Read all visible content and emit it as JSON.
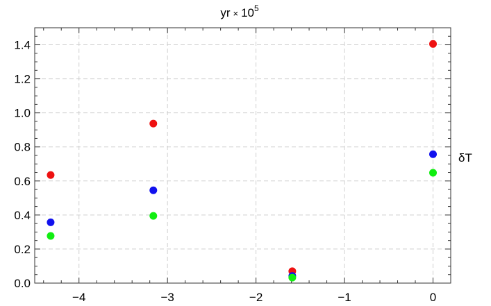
{
  "chart_data": {
    "type": "scatter",
    "title": "",
    "top_label": {
      "base": "yr",
      "times": "×",
      "mantissa": "10",
      "exponent": "5"
    },
    "xlabel": "",
    "ylabel": "δT",
    "xlim": [
      -4.5,
      0.2
    ],
    "ylim": [
      0,
      1.5
    ],
    "xticks": [
      -4,
      -3,
      -2,
      -1,
      0
    ],
    "xtick_labels": [
      "−4",
      "−3",
      "−2",
      "−1",
      "0"
    ],
    "yticks": [
      0.0,
      0.2,
      0.4,
      0.6,
      0.8,
      1.0,
      1.2,
      1.4
    ],
    "ytick_labels": [
      "0.0",
      "0.2",
      "0.4",
      "0.6",
      "0.8",
      "1.0",
      "1.2",
      "1.4"
    ],
    "grid": true,
    "x": [
      -4.32,
      -3.16,
      -1.59,
      0.0
    ],
    "series": [
      {
        "color": "#ee1111",
        "values": [
          0.635,
          0.937,
          0.07,
          1.405
        ]
      },
      {
        "color": "#1111ee",
        "values": [
          0.357,
          0.545,
          0.042,
          0.757
        ]
      },
      {
        "color": "#11ee11",
        "values": [
          0.277,
          0.395,
          0.032,
          0.648
        ]
      }
    ]
  }
}
